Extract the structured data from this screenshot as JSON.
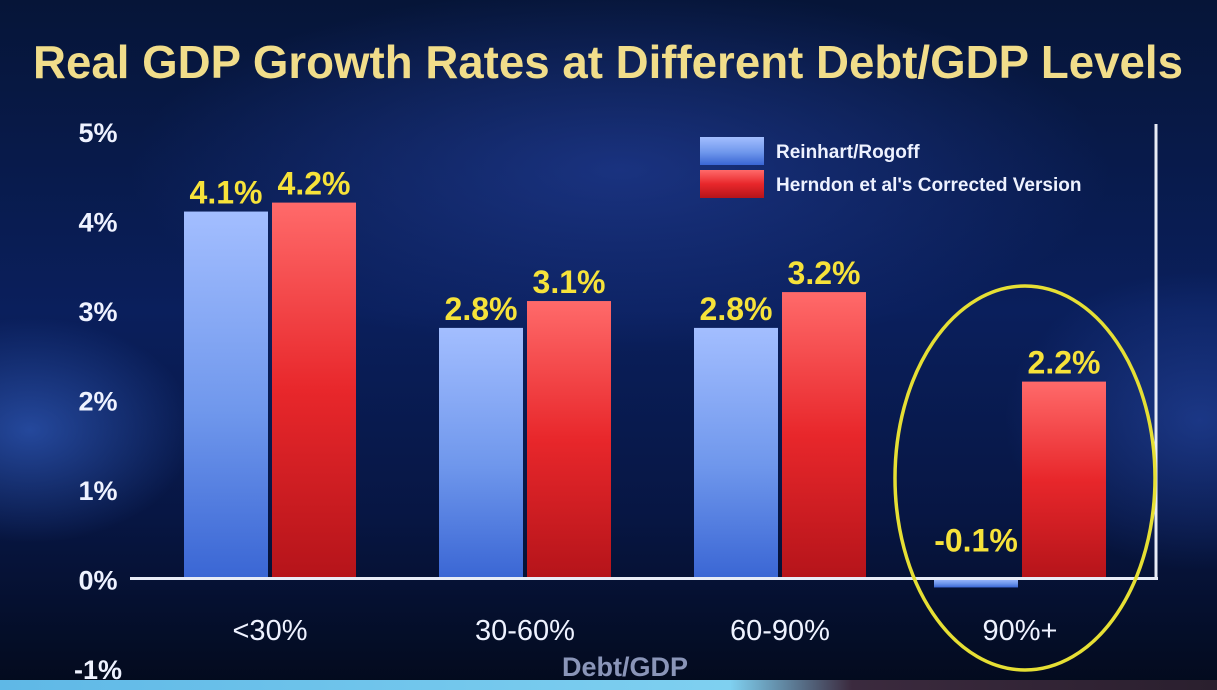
{
  "chart_data": {
    "type": "bar",
    "title": "Real GDP Growth Rates at Different Debt/GDP Levels",
    "xlabel": "Debt/GDP",
    "ylabel": "",
    "categories": [
      "<30%",
      "30-60%",
      "60-90%",
      "90%+"
    ],
    "series": [
      {
        "name": "Reinhart/Rogoff",
        "values": [
          4.1,
          2.8,
          2.8,
          -0.1
        ],
        "labels": [
          "4.1%",
          "2.8%",
          "2.8%",
          "-0.1%"
        ]
      },
      {
        "name": "Herndon et al's Corrected Version",
        "values": [
          4.2,
          3.1,
          3.2,
          2.2
        ],
        "labels": [
          "4.2%",
          "3.1%",
          "3.2%",
          "2.2%"
        ]
      }
    ],
    "ylim": [
      -1,
      5
    ],
    "yticks": [
      5,
      4,
      3,
      2,
      1,
      0,
      -1
    ],
    "ytick_labels": [
      "5%",
      "4%",
      "3%",
      "2%",
      "1%",
      "0%",
      "-1%"
    ],
    "legend_position": "top-right",
    "grid": false,
    "highlight": {
      "category": "90%+",
      "shape": "ellipse"
    }
  },
  "colors": {
    "title": "#f1dd8a",
    "data_label": "#f6e23a",
    "axis_text": "#eef2ff",
    "axis_line": "#e8ecf6",
    "series_1": "#5b8de8",
    "series_2": "#e8272b",
    "highlight": "#e6df34"
  }
}
